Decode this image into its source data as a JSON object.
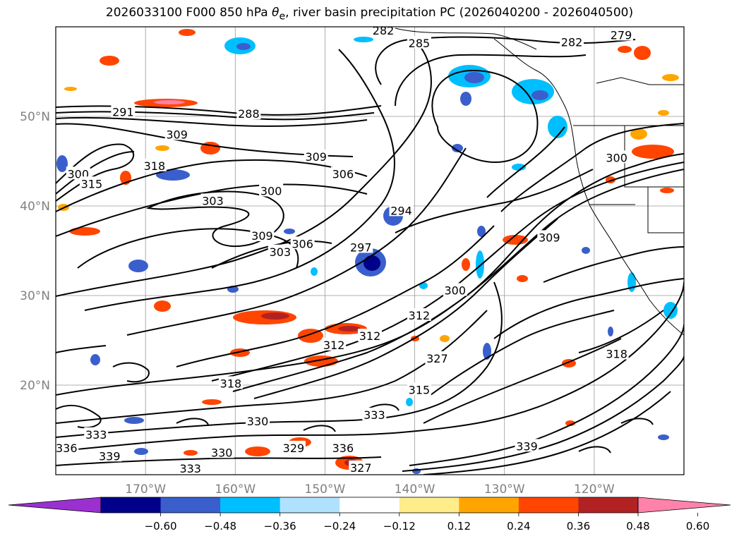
{
  "title": {
    "prefix": "2026033100 F000 850 hPa ",
    "symbol": "θ",
    "subscript": "e",
    "suffix": ", river basin precipitation PC (2026040200 - 2026040500)"
  },
  "map": {
    "lat_labels": [
      "50°N",
      "40°N",
      "30°N",
      "20°N"
    ],
    "lon_labels": [
      "170°W",
      "160°W",
      "150°W",
      "140°W",
      "130°W",
      "120°W"
    ],
    "lat_values": [
      50,
      40,
      30,
      20
    ],
    "lon_values": [
      -170,
      -160,
      -150,
      -140,
      -130,
      -120
    ],
    "lat_range": [
      10,
      60
    ],
    "lon_range": [
      -180,
      -110
    ],
    "gridlines": true,
    "coast_color": "#000000",
    "contour_color": "#000000",
    "contour_labels": [
      {
        "text": "282",
        "lon": -143.5,
        "lat": 59.6
      },
      {
        "text": "285",
        "lon": -139.5,
        "lat": 58.2
      },
      {
        "text": "279",
        "lon": -117.0,
        "lat": 59.1
      },
      {
        "text": "282",
        "lon": -122.5,
        "lat": 58.3
      },
      {
        "text": "291",
        "lon": -172.5,
        "lat": 50.5
      },
      {
        "text": "288",
        "lon": -158.5,
        "lat": 50.3
      },
      {
        "text": "309",
        "lon": -166.5,
        "lat": 48.0
      },
      {
        "text": "318",
        "lon": -169.0,
        "lat": 44.5
      },
      {
        "text": "300",
        "lon": -177.5,
        "lat": 43.6
      },
      {
        "text": "315",
        "lon": -176.0,
        "lat": 42.5
      },
      {
        "text": "309",
        "lon": -151.0,
        "lat": 45.5
      },
      {
        "text": "306",
        "lon": -148.0,
        "lat": 43.6
      },
      {
        "text": "300",
        "lon": -156.0,
        "lat": 41.7
      },
      {
        "text": "303",
        "lon": -162.5,
        "lat": 40.6
      },
      {
        "text": "294",
        "lon": -141.5,
        "lat": 39.5
      },
      {
        "text": "309",
        "lon": -157.0,
        "lat": 36.7
      },
      {
        "text": "306",
        "lon": -152.5,
        "lat": 35.8
      },
      {
        "text": "303",
        "lon": -155.0,
        "lat": 34.9
      },
      {
        "text": "297",
        "lon": -146.0,
        "lat": 35.4
      },
      {
        "text": "300",
        "lon": -135.5,
        "lat": 30.6
      },
      {
        "text": "312",
        "lon": -139.5,
        "lat": 27.8
      },
      {
        "text": "312",
        "lon": -149.0,
        "lat": 24.5
      },
      {
        "text": "312",
        "lon": -145.0,
        "lat": 25.5
      },
      {
        "text": "327",
        "lon": -137.5,
        "lat": 23.0
      },
      {
        "text": "315",
        "lon": -139.5,
        "lat": 19.5
      },
      {
        "text": "318",
        "lon": -160.5,
        "lat": 20.2
      },
      {
        "text": "318",
        "lon": -117.5,
        "lat": 23.5
      },
      {
        "text": "330",
        "lon": -157.5,
        "lat": 16.0
      },
      {
        "text": "333",
        "lon": -144.5,
        "lat": 16.7
      },
      {
        "text": "333",
        "lon": -175.5,
        "lat": 14.5
      },
      {
        "text": "336",
        "lon": -178.8,
        "lat": 13.0
      },
      {
        "text": "339",
        "lon": -174.0,
        "lat": 12.1
      },
      {
        "text": "330",
        "lon": -161.5,
        "lat": 12.5
      },
      {
        "text": "329",
        "lon": -153.5,
        "lat": 13.0
      },
      {
        "text": "336",
        "lon": -148.0,
        "lat": 13.0
      },
      {
        "text": "333",
        "lon": -165.0,
        "lat": 10.7
      },
      {
        "text": "327",
        "lon": -146.0,
        "lat": 10.8
      },
      {
        "text": "339",
        "lon": -127.5,
        "lat": 13.2
      },
      {
        "text": "309",
        "lon": -125.0,
        "lat": 36.5
      },
      {
        "text": "300",
        "lon": -117.5,
        "lat": 45.4
      }
    ]
  },
  "colorbar": {
    "ticks": [
      "−0.60",
      "−0.48",
      "−0.36",
      "−0.24",
      "−0.12",
      "0.12",
      "0.24",
      "0.36",
      "0.48",
      "0.60"
    ],
    "colors": [
      "#9b30d0",
      "#00008b",
      "#3a5fcd",
      "#00bfff",
      "#b0e2ff",
      "#ffffff",
      "#ffec8b",
      "#ffa500",
      "#ff4500",
      "#b22222",
      "#ff82ab"
    ]
  }
}
